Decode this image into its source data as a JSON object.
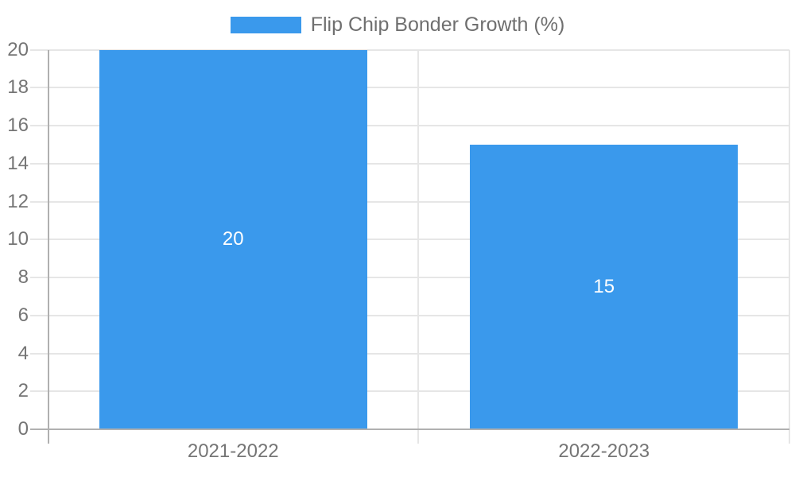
{
  "chart_data": {
    "type": "bar",
    "title": "",
    "legend": "Flip Chip Bonder Growth (%)",
    "legend_position": "top",
    "categories": [
      "2021-2022",
      "2022-2023"
    ],
    "series": [
      {
        "name": "Flip Chip Bonder Growth (%)",
        "values": [
          20,
          15
        ],
        "data_labels": [
          "20",
          "15"
        ]
      }
    ],
    "xlabel": "",
    "ylabel": "",
    "ylim": [
      0,
      20
    ],
    "ytick_step": 2,
    "ytick_labels": [
      "0",
      "2",
      "4",
      "6",
      "8",
      "10",
      "12",
      "14",
      "16",
      "18",
      "20"
    ],
    "grid": true,
    "colors": {
      "bar": "#3A99EC",
      "grid_line": "#e6e6e6",
      "axis_line": "#b0b0b0",
      "tick_label": "#757575",
      "legend_text": "#6f6f6f",
      "bar_label": "#ffffff",
      "background": "#ffffff"
    }
  }
}
